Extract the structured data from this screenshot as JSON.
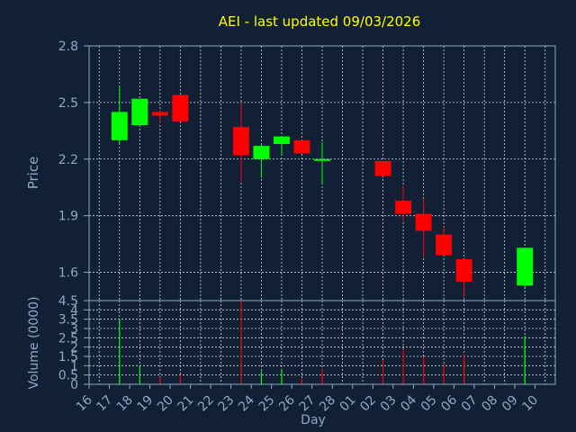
{
  "colors": {
    "background": "#112035",
    "plot_border": "#8fa8c8",
    "grid": "#cfd8e6",
    "axis_text": "#8fa8c8",
    "title": "#ffff00",
    "up": "#00ff00",
    "down": "#ff0000"
  },
  "chart_data": [
    {
      "type": "candlestick",
      "title": "AEI - last updated 09/03/2026",
      "ylabel": "Price",
      "ylim": [
        1.45,
        2.8
      ],
      "yticks": [
        "2.8",
        "2.5",
        "2.2",
        "1.9",
        "1.6"
      ],
      "grid": true,
      "candles": [
        {
          "x": "17",
          "open": 2.3,
          "high": 2.59,
          "low": 2.28,
          "close": 2.45
        },
        {
          "x": "18",
          "open": 2.38,
          "high": 2.52,
          "low": 2.38,
          "close": 2.52
        },
        {
          "x": "19",
          "open": 2.45,
          "high": 2.46,
          "low": 2.39,
          "close": 2.43
        },
        {
          "x": "20",
          "open": 2.54,
          "high": 2.54,
          "low": 2.4,
          "close": 2.4
        },
        {
          "x": "23",
          "open": 2.37,
          "high": 2.5,
          "low": 2.08,
          "close": 2.22
        },
        {
          "x": "24",
          "open": 2.2,
          "high": 2.28,
          "low": 2.1,
          "close": 2.27
        },
        {
          "x": "25",
          "open": 2.28,
          "high": 2.32,
          "low": 2.22,
          "close": 2.32
        },
        {
          "x": "26",
          "open": 2.3,
          "high": 2.3,
          "low": 2.23,
          "close": 2.23
        },
        {
          "x": "27",
          "open": 2.2,
          "high": 2.29,
          "low": 2.07,
          "close": 2.2
        },
        {
          "x": "02",
          "open": 2.19,
          "high": 2.19,
          "low": 2.11,
          "close": 2.11
        },
        {
          "x": "03",
          "open": 1.98,
          "high": 2.06,
          "low": 1.87,
          "close": 1.91
        },
        {
          "x": "04",
          "open": 1.91,
          "high": 1.99,
          "low": 1.68,
          "close": 1.82
        },
        {
          "x": "05",
          "open": 1.8,
          "high": 1.84,
          "low": 1.69,
          "close": 1.69
        },
        {
          "x": "06",
          "open": 1.67,
          "high": 1.67,
          "low": 1.47,
          "close": 1.55
        },
        {
          "x": "09",
          "open": 1.53,
          "high": 1.73,
          "low": 1.51,
          "close": 1.73
        }
      ]
    },
    {
      "type": "bar",
      "ylabel": "Volume (0000)",
      "xlabel": "Day",
      "ylim": [
        0,
        4.5
      ],
      "yticks": [
        "4.5",
        "4",
        "3.5",
        "3",
        "2.5",
        "2",
        "1.5",
        "1",
        "0.5",
        "0"
      ],
      "grid": true,
      "categories": [
        "16",
        "17",
        "18",
        "19",
        "20",
        "21",
        "22",
        "23",
        "24",
        "25",
        "26",
        "27",
        "28",
        "01",
        "02",
        "03",
        "04",
        "05",
        "06",
        "07",
        "08",
        "09",
        "10"
      ],
      "bars": [
        {
          "x": "17",
          "value": 3.5,
          "direction": "up"
        },
        {
          "x": "18",
          "value": 1.0,
          "direction": "up"
        },
        {
          "x": "19",
          "value": 0.4,
          "direction": "down"
        },
        {
          "x": "20",
          "value": 0.5,
          "direction": "down"
        },
        {
          "x": "23",
          "value": 4.5,
          "direction": "down"
        },
        {
          "x": "24",
          "value": 0.7,
          "direction": "up"
        },
        {
          "x": "25",
          "value": 0.8,
          "direction": "up"
        },
        {
          "x": "26",
          "value": 0.3,
          "direction": "down"
        },
        {
          "x": "27",
          "value": 0.8,
          "direction": "down"
        },
        {
          "x": "02",
          "value": 1.3,
          "direction": "down"
        },
        {
          "x": "03",
          "value": 1.9,
          "direction": "down"
        },
        {
          "x": "04",
          "value": 1.5,
          "direction": "down"
        },
        {
          "x": "05",
          "value": 1.1,
          "direction": "down"
        },
        {
          "x": "06",
          "value": 1.6,
          "direction": "down"
        },
        {
          "x": "09",
          "value": 2.6,
          "direction": "up"
        }
      ]
    }
  ]
}
